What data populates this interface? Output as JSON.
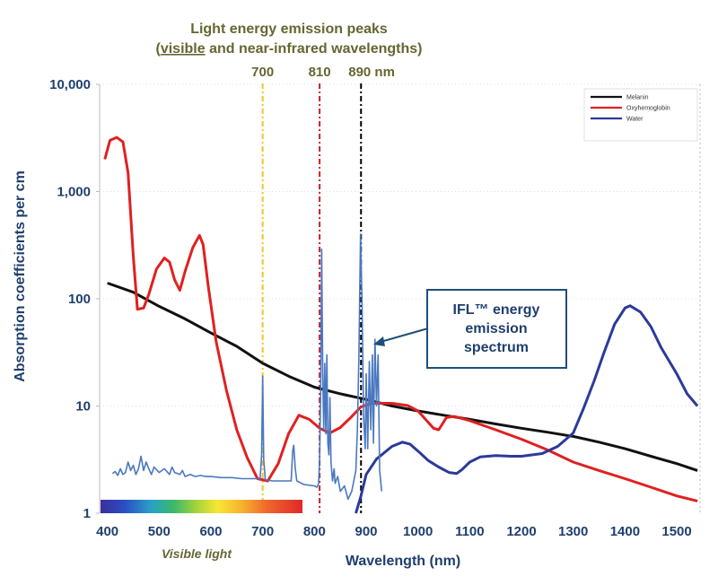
{
  "chart_data": {
    "type": "line",
    "title_line1": "Light energy emission peaks",
    "title_line2_prefix": "(",
    "title_line2_underlined": "visible",
    "title_line2_suffix": " and near-infrared wavelengths)",
    "title_color": "#666633",
    "axis_color": "#1f3f6e",
    "xlabel": "Wavelength (nm)",
    "ylabel": "Absorption coefficients per cm",
    "xlim": [
      385,
      1545
    ],
    "ylim": [
      1,
      10000
    ],
    "yscale": "log",
    "x_ticks": [
      400,
      500,
      600,
      700,
      800,
      900,
      1000,
      1100,
      1200,
      1300,
      1400,
      1500
    ],
    "x_tick_labels": [
      "400",
      "500",
      "600",
      "700",
      "800",
      "900",
      "1000",
      "1100",
      "1200",
      "1300",
      "1400",
      "1500"
    ],
    "y_ticks": [
      1,
      10,
      100,
      1000,
      10000
    ],
    "y_tick_labels": [
      "1",
      "10",
      "100",
      "1,000",
      "10,000"
    ],
    "peaks": [
      {
        "wavelength": 700,
        "label": "700",
        "color": "#f2c522"
      },
      {
        "wavelength": 810,
        "label": "810",
        "color": "#c8202a"
      },
      {
        "wavelength": 890,
        "label": "890 nm",
        "color": "#000000"
      }
    ],
    "legend": [
      {
        "name": "Melanin",
        "color": "#111111"
      },
      {
        "name": "Oxyhemoglobin",
        "color": "#e02020"
      },
      {
        "name": "Water",
        "color": "#2b3a9a"
      }
    ],
    "series": [
      {
        "name": "Melanin",
        "color": "#111111",
        "points": [
          [
            400,
            140
          ],
          [
            450,
            115
          ],
          [
            500,
            85
          ],
          [
            550,
            65
          ],
          [
            600,
            48
          ],
          [
            650,
            36
          ],
          [
            700,
            25
          ],
          [
            750,
            19
          ],
          [
            800,
            15
          ],
          [
            850,
            13
          ],
          [
            900,
            11.5
          ],
          [
            950,
            10
          ],
          [
            1000,
            9
          ],
          [
            1050,
            8.2
          ],
          [
            1100,
            7.5
          ],
          [
            1150,
            6.8
          ],
          [
            1200,
            6.2
          ],
          [
            1250,
            5.7
          ],
          [
            1300,
            5.2
          ],
          [
            1350,
            4.6
          ],
          [
            1400,
            4.0
          ],
          [
            1450,
            3.4
          ],
          [
            1500,
            2.9
          ],
          [
            1540,
            2.5
          ]
        ]
      },
      {
        "name": "Oxyhemoglobin",
        "color": "#e02020",
        "points": [
          [
            395,
            2000
          ],
          [
            405,
            3000
          ],
          [
            418,
            3200
          ],
          [
            430,
            2900
          ],
          [
            440,
            1500
          ],
          [
            450,
            250
          ],
          [
            458,
            80
          ],
          [
            470,
            82
          ],
          [
            480,
            110
          ],
          [
            495,
            190
          ],
          [
            510,
            240
          ],
          [
            520,
            220
          ],
          [
            530,
            150
          ],
          [
            540,
            120
          ],
          [
            550,
            180
          ],
          [
            565,
            300
          ],
          [
            578,
            390
          ],
          [
            585,
            320
          ],
          [
            595,
            130
          ],
          [
            610,
            40
          ],
          [
            630,
            14
          ],
          [
            650,
            6
          ],
          [
            670,
            3.3
          ],
          [
            690,
            2.1
          ],
          [
            710,
            2.0
          ],
          [
            730,
            2.9
          ],
          [
            750,
            5.5
          ],
          [
            770,
            8.2
          ],
          [
            790,
            7.5
          ],
          [
            810,
            6.2
          ],
          [
            830,
            5.6
          ],
          [
            850,
            6.3
          ],
          [
            870,
            7.8
          ],
          [
            890,
            9.8
          ],
          [
            910,
            10.6
          ],
          [
            950,
            10.6
          ],
          [
            980,
            10.1
          ],
          [
            1000,
            9.0
          ],
          [
            1030,
            6.2
          ],
          [
            1040,
            6.0
          ],
          [
            1055,
            7.8
          ],
          [
            1070,
            8.0
          ],
          [
            1100,
            7.3
          ],
          [
            1150,
            6.0
          ],
          [
            1200,
            4.9
          ],
          [
            1250,
            3.9
          ],
          [
            1300,
            3.0
          ],
          [
            1350,
            2.5
          ],
          [
            1400,
            2.1
          ],
          [
            1450,
            1.75
          ],
          [
            1500,
            1.45
          ],
          [
            1540,
            1.3
          ]
        ]
      },
      {
        "name": "Water",
        "color": "#2b3a9a",
        "points": [
          [
            880,
            1.0
          ],
          [
            890,
            1.45
          ],
          [
            900,
            2.3
          ],
          [
            920,
            3.2
          ],
          [
            950,
            4.2
          ],
          [
            970,
            4.6
          ],
          [
            985,
            4.4
          ],
          [
            1000,
            3.8
          ],
          [
            1020,
            3.1
          ],
          [
            1040,
            2.7
          ],
          [
            1060,
            2.4
          ],
          [
            1075,
            2.35
          ],
          [
            1085,
            2.55
          ],
          [
            1100,
            3.0
          ],
          [
            1120,
            3.35
          ],
          [
            1150,
            3.45
          ],
          [
            1180,
            3.4
          ],
          [
            1200,
            3.4
          ],
          [
            1240,
            3.6
          ],
          [
            1270,
            4.2
          ],
          [
            1300,
            5.6
          ],
          [
            1320,
            9.5
          ],
          [
            1340,
            17
          ],
          [
            1360,
            32
          ],
          [
            1380,
            58
          ],
          [
            1400,
            82
          ],
          [
            1410,
            86
          ],
          [
            1430,
            75
          ],
          [
            1450,
            55
          ],
          [
            1470,
            35
          ],
          [
            1500,
            20
          ],
          [
            1520,
            13
          ],
          [
            1540,
            10
          ]
        ]
      },
      {
        "name": "IFL™ energy emission spectrum",
        "color": "#4a78c0",
        "points": [
          [
            410,
            2.35
          ],
          [
            415,
            2.45
          ],
          [
            420,
            2.25
          ],
          [
            425,
            2.6
          ],
          [
            430,
            2.3
          ],
          [
            435,
            2.4
          ],
          [
            440,
            3.0
          ],
          [
            445,
            2.5
          ],
          [
            450,
            2.8
          ],
          [
            455,
            2.3
          ],
          [
            460,
            2.6
          ],
          [
            465,
            3.4
          ],
          [
            470,
            2.5
          ],
          [
            475,
            3.0
          ],
          [
            480,
            2.6
          ],
          [
            485,
            2.3
          ],
          [
            490,
            2.7
          ],
          [
            500,
            2.4
          ],
          [
            510,
            2.6
          ],
          [
            520,
            2.3
          ],
          [
            525,
            2.7
          ],
          [
            530,
            2.4
          ],
          [
            540,
            2.3
          ],
          [
            545,
            2.5
          ],
          [
            550,
            2.2
          ],
          [
            560,
            2.3
          ],
          [
            570,
            2.2
          ],
          [
            580,
            2.25
          ],
          [
            590,
            2.2
          ],
          [
            600,
            2.2
          ],
          [
            620,
            2.15
          ],
          [
            640,
            2.15
          ],
          [
            660,
            2.1
          ],
          [
            680,
            2.1
          ],
          [
            695,
            2.1
          ],
          [
            698,
            3.5
          ],
          [
            700,
            19
          ],
          [
            702,
            3.2
          ],
          [
            705,
            2.05
          ],
          [
            720,
            2.0
          ],
          [
            740,
            2.0
          ],
          [
            755,
            2.0
          ],
          [
            758,
            3.8
          ],
          [
            760,
            4.3
          ],
          [
            763,
            2.6
          ],
          [
            766,
            2.0
          ],
          [
            780,
            1.85
          ],
          [
            800,
            1.8
          ],
          [
            805,
            1.75
          ],
          [
            808,
            1.9
          ],
          [
            810,
            3.2
          ],
          [
            812,
            14
          ],
          [
            814,
            290
          ],
          [
            816,
            20
          ],
          [
            818,
            6
          ],
          [
            820,
            25
          ],
          [
            822,
            5.5
          ],
          [
            824,
            30
          ],
          [
            826,
            4.5
          ],
          [
            828,
            3.5
          ],
          [
            830,
            12
          ],
          [
            832,
            3.0
          ],
          [
            835,
            2.0
          ],
          [
            838,
            2.6
          ],
          [
            840,
            1.9
          ],
          [
            845,
            2.2
          ],
          [
            850,
            1.6
          ],
          [
            858,
            1.8
          ],
          [
            865,
            1.35
          ],
          [
            872,
            1.6
          ],
          [
            880,
            2.5
          ],
          [
            883,
            6
          ],
          [
            886,
            30
          ],
          [
            889,
            400
          ],
          [
            892,
            90
          ],
          [
            895,
            8
          ],
          [
            898,
            4
          ],
          [
            900,
            20
          ],
          [
            903,
            4
          ],
          [
            906,
            26
          ],
          [
            909,
            6
          ],
          [
            912,
            30
          ],
          [
            914,
            4.5
          ],
          [
            917,
            42
          ],
          [
            920,
            10
          ],
          [
            923,
            30
          ],
          [
            926,
            2.5
          ],
          [
            930,
            1.6
          ]
        ]
      }
    ]
  },
  "callout": {
    "line1": "IFL™ energy",
    "line2": "emission",
    "line3": "spectrum",
    "border_color": "#1f4e79"
  },
  "visible_light_label": "Visible light",
  "visible_light_color": "#666633"
}
